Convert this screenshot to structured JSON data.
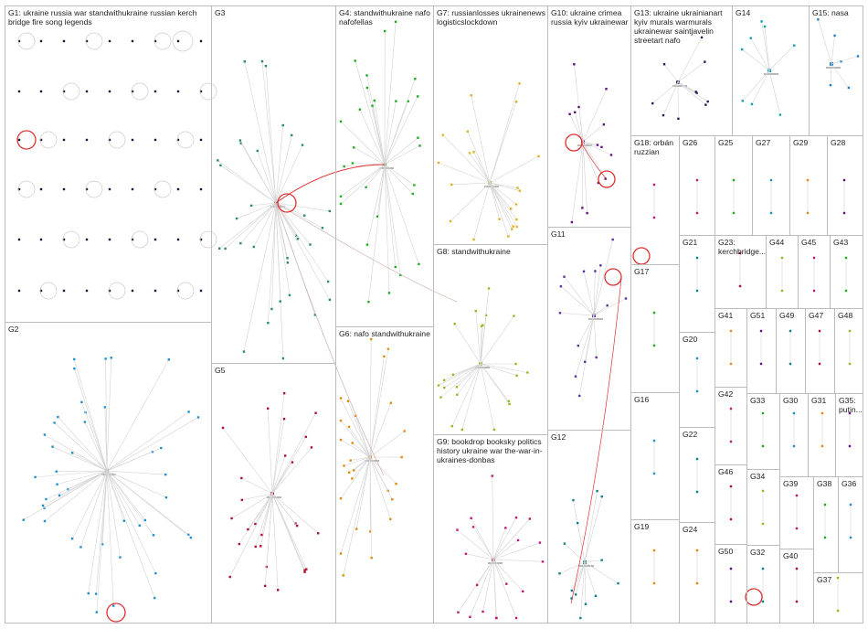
{
  "groups": [
    {
      "id": "G1",
      "label": "G1: ukraine russia war standwithukraine russian kerch bridge fire song legends"
    },
    {
      "id": "G2",
      "label": "G2"
    },
    {
      "id": "G3",
      "label": "G3"
    },
    {
      "id": "G4",
      "label": "G4: standwithukraine nafo nafofellas"
    },
    {
      "id": "G5",
      "label": "G5"
    },
    {
      "id": "G6",
      "label": "G6: nafo standwithukraine"
    },
    {
      "id": "G7",
      "label": "G7: russianlosses ukrainenews logisticslockdown"
    },
    {
      "id": "G8",
      "label": "G8: standwithukraine"
    },
    {
      "id": "G9",
      "label": "G9: bookdrop booksky politics history ukraine war the-war-in-ukraines-donbas"
    },
    {
      "id": "G10",
      "label": "G10: ukraine crimea russia kyiv ukrainewar"
    },
    {
      "id": "G11",
      "label": "G11"
    },
    {
      "id": "G12",
      "label": "G12"
    },
    {
      "id": "G13",
      "label": "G13: ukraine ukrainianart kyiv murals warmurals ukrainewar saintjavelin streetart nafo"
    },
    {
      "id": "G14",
      "label": "G14"
    },
    {
      "id": "G15",
      "label": "G15: nasa"
    },
    {
      "id": "G16",
      "label": "G16"
    },
    {
      "id": "G17",
      "label": "G17"
    },
    {
      "id": "G18",
      "label": "G18: orbán ruzzian"
    },
    {
      "id": "G19",
      "label": "G19"
    },
    {
      "id": "G20",
      "label": "G20"
    },
    {
      "id": "G21",
      "label": "G21"
    },
    {
      "id": "G22",
      "label": "G22"
    },
    {
      "id": "G23",
      "label": "G23: kerchbridge..."
    },
    {
      "id": "G24",
      "label": "G24"
    },
    {
      "id": "G25",
      "label": "G25"
    },
    {
      "id": "G26",
      "label": "G26"
    },
    {
      "id": "G27",
      "label": "G27"
    },
    {
      "id": "G28",
      "label": "G28"
    },
    {
      "id": "G29",
      "label": "G29"
    },
    {
      "id": "G30",
      "label": "G30"
    },
    {
      "id": "G31",
      "label": "G31"
    },
    {
      "id": "G32",
      "label": "G32"
    },
    {
      "id": "G33",
      "label": "G33"
    },
    {
      "id": "G34",
      "label": "G34"
    },
    {
      "id": "G35",
      "label": "G35: putin..."
    },
    {
      "id": "G36",
      "label": "G36"
    },
    {
      "id": "G37",
      "label": "G37"
    },
    {
      "id": "G38",
      "label": "G38"
    },
    {
      "id": "G39",
      "label": "G39"
    },
    {
      "id": "G40",
      "label": "G40"
    },
    {
      "id": "G41",
      "label": "G41"
    },
    {
      "id": "G42",
      "label": "G42"
    },
    {
      "id": "G43",
      "label": "G43"
    },
    {
      "id": "G44",
      "label": "G44"
    },
    {
      "id": "G45",
      "label": "G45"
    },
    {
      "id": "G46",
      "label": "G46"
    },
    {
      "id": "G47",
      "label": "G47"
    },
    {
      "id": "G48",
      "label": "G48"
    },
    {
      "id": "G49",
      "label": "G49"
    },
    {
      "id": "G50",
      "label": "G50"
    },
    {
      "id": "G51",
      "label": "G51"
    }
  ],
  "colors": {
    "border": "#bcbcbc",
    "edge": "#d3d3d3",
    "highlight_edge": "#e03030",
    "G1": "#1a1a3a",
    "G2": "#1f8fd0",
    "G3": "#2a8a6a",
    "G4": "#22aa22",
    "G5": "#b01030",
    "G6": "#e08a10",
    "G7": "#e0b020",
    "G8": "#8cc020",
    "G9": "#c01870",
    "G10": "#601080",
    "G11": "#6030a0",
    "G12": "#108080",
    "G13": "#202060",
    "G14": "#10a0b0",
    "G15": "#2080c0"
  }
}
